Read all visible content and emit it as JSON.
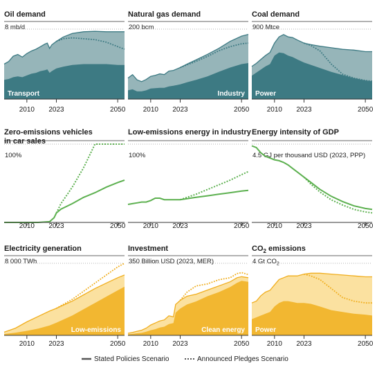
{
  "legend": {
    "stated": "Stated Policies Scenario",
    "announced": "Announced Pledges Scenario"
  },
  "colors": {
    "teal_dark": "#3d7a83",
    "teal_light": "#96b5b9",
    "green": "#5cb04f",
    "gold_dark": "#f2b731",
    "gold_light": "#fbe1a0",
    "gold_line": "#f0ad1c",
    "grid": "#999999",
    "axis": "#333333"
  },
  "chart_data": [
    {
      "id": "oil",
      "type": "area",
      "title_lines": [
        "Oil demand"
      ],
      "unit": "8 mb/d",
      "style": "teal",
      "ylim": [
        0,
        8
      ],
      "xticks": [
        "2010",
        "2023",
        "2050"
      ],
      "area_label": "Transport",
      "x": [
        2000,
        2002,
        2004,
        2006,
        2008,
        2010,
        2012,
        2014,
        2016,
        2018,
        2019,
        2020,
        2021,
        2023,
        2026,
        2030,
        2035,
        2040,
        2045,
        2050,
        2053
      ],
      "total_stated": [
        4.0,
        4.3,
        4.9,
        5.1,
        4.8,
        5.2,
        5.5,
        5.7,
        6.0,
        6.3,
        6.4,
        5.8,
        6.2,
        6.6,
        7.1,
        7.5,
        7.7,
        7.75,
        7.7,
        7.7,
        7.7
      ],
      "total_announced": [
        null,
        null,
        null,
        null,
        null,
        null,
        null,
        null,
        null,
        null,
        null,
        null,
        null,
        6.6,
        6.9,
        7.0,
        6.9,
        6.8,
        6.5,
        6.0,
        5.7
      ],
      "segment": [
        2.2,
        2.3,
        2.5,
        2.6,
        2.5,
        2.7,
        2.9,
        3.0,
        3.2,
        3.3,
        3.4,
        3.0,
        3.2,
        3.5,
        3.7,
        3.9,
        4.0,
        4.0,
        4.0,
        3.9,
        3.9
      ]
    },
    {
      "id": "gas",
      "type": "area",
      "title_lines": [
        "Natural gas demand"
      ],
      "unit": "200 bcm",
      "style": "teal",
      "ylim": [
        0,
        200
      ],
      "xticks": [
        "2010",
        "2023",
        "2050"
      ],
      "area_label": "Industry",
      "x": [
        2000,
        2002,
        2004,
        2006,
        2008,
        2010,
        2012,
        2014,
        2016,
        2018,
        2020,
        2023,
        2026,
        2030,
        2035,
        2040,
        2045,
        2050,
        2053
      ],
      "total_stated": [
        60,
        70,
        55,
        50,
        56,
        65,
        68,
        72,
        70,
        80,
        82,
        90,
        100,
        112,
        128,
        145,
        165,
        180,
        185
      ],
      "total_announced": [
        null,
        null,
        null,
        null,
        null,
        null,
        null,
        null,
        null,
        null,
        null,
        90,
        98,
        108,
        122,
        138,
        150,
        158,
        160
      ],
      "segment": [
        25,
        28,
        22,
        22,
        25,
        30,
        31,
        32,
        32,
        36,
        38,
        42,
        48,
        55,
        65,
        78,
        90,
        100,
        103
      ]
    },
    {
      "id": "coal",
      "type": "area",
      "title_lines": [
        "Coal demand"
      ],
      "unit": "900 Mtce",
      "style": "teal",
      "ylim": [
        0,
        900
      ],
      "xticks": [
        "2010",
        "2023",
        "2050"
      ],
      "area_label": "Power",
      "x": [
        2000,
        2002,
        2004,
        2006,
        2008,
        2010,
        2012,
        2014,
        2016,
        2018,
        2020,
        2023,
        2026,
        2030,
        2035,
        2040,
        2045,
        2050,
        2053
      ],
      "total_stated": [
        420,
        460,
        510,
        560,
        600,
        720,
        800,
        830,
        800,
        790,
        760,
        720,
        700,
        680,
        660,
        640,
        630,
        610,
        610
      ],
      "total_announced": [
        null,
        null,
        null,
        null,
        null,
        null,
        null,
        null,
        null,
        null,
        null,
        720,
        690,
        620,
        450,
        320,
        270,
        240,
        230
      ],
      "segment": [
        300,
        340,
        380,
        420,
        450,
        560,
        600,
        590,
        560,
        540,
        510,
        470,
        440,
        400,
        350,
        310,
        270,
        240,
        230
      ]
    },
    {
      "id": "zev",
      "type": "line",
      "title_lines": [
        "Zero-emissions vehicles",
        "in car sales"
      ],
      "unit": "100%",
      "style": "green",
      "ylim": [
        0,
        100
      ],
      "xticks": [
        "2010",
        "2023",
        "2050"
      ],
      "x": [
        2000,
        2005,
        2010,
        2015,
        2020,
        2022,
        2023,
        2025,
        2030,
        2035,
        2040,
        2045,
        2050,
        2053
      ],
      "stated": [
        0,
        0,
        0,
        0,
        1,
        6,
        12,
        17,
        24,
        32,
        38,
        45,
        51,
        54
      ],
      "announced": [
        null,
        null,
        null,
        null,
        null,
        null,
        12,
        24,
        45,
        70,
        100,
        100,
        100,
        100
      ]
    },
    {
      "id": "industry",
      "type": "line",
      "title_lines": [
        "Low-emissions energy in industry"
      ],
      "unit": "100%",
      "style": "green",
      "ylim": [
        0,
        100
      ],
      "xticks": [
        "2010",
        "2023",
        "2050"
      ],
      "x": [
        2000,
        2002,
        2004,
        2006,
        2008,
        2010,
        2012,
        2014,
        2016,
        2018,
        2020,
        2023,
        2030,
        2035,
        2040,
        2045,
        2050,
        2053
      ],
      "stated": [
        23,
        24,
        25,
        26,
        26,
        28,
        31,
        31,
        29,
        29,
        29,
        29,
        32,
        34,
        36,
        38,
        40,
        41
      ],
      "announced": [
        null,
        null,
        null,
        null,
        null,
        null,
        null,
        null,
        null,
        null,
        null,
        29,
        36,
        42,
        48,
        54,
        61,
        65
      ]
    },
    {
      "id": "intensity",
      "type": "line",
      "title_lines": [
        "Energy intensity of GDP"
      ],
      "unit": "4.5 GJ per thousand USD (2023, PPP)",
      "style": "green",
      "ylim": [
        0,
        4.5
      ],
      "xticks": [
        "2010",
        "2023",
        "2050"
      ],
      "x": [
        2000,
        2002,
        2004,
        2006,
        2008,
        2010,
        2012,
        2014,
        2016,
        2018,
        2020,
        2023,
        2026,
        2030,
        2035,
        2040,
        2045,
        2050,
        2053
      ],
      "stated": [
        4.4,
        4.3,
        4.0,
        3.8,
        3.7,
        3.6,
        3.55,
        3.45,
        3.3,
        3.1,
        2.9,
        2.6,
        2.3,
        1.9,
        1.5,
        1.2,
        0.95,
        0.8,
        0.75
      ],
      "announced": [
        null,
        null,
        null,
        null,
        null,
        null,
        null,
        null,
        null,
        null,
        null,
        2.6,
        2.2,
        1.75,
        1.3,
        1.0,
        0.75,
        0.6,
        0.55
      ]
    },
    {
      "id": "electricity",
      "type": "area",
      "title_lines": [
        "Electricity generation"
      ],
      "unit": "8 000 TWh",
      "style": "gold",
      "ylim": [
        0,
        8000
      ],
      "xticks": [
        "2010",
        "2023",
        "2050"
      ],
      "area_label": "Low-emissions",
      "x": [
        2000,
        2005,
        2010,
        2015,
        2020,
        2023,
        2030,
        2035,
        2040,
        2045,
        2050,
        2053
      ],
      "total_stated": [
        350,
        800,
        1500,
        2100,
        2700,
        3000,
        3800,
        4500,
        5200,
        5800,
        6400,
        6700
      ],
      "total_announced": [
        null,
        null,
        null,
        null,
        null,
        3000,
        4000,
        4900,
        5800,
        6700,
        7600,
        8000
      ],
      "segment": [
        150,
        300,
        500,
        750,
        1100,
        1400,
        2200,
        2900,
        3600,
        4300,
        5000,
        5400
      ]
    },
    {
      "id": "investment",
      "type": "area",
      "title_lines": [
        "Investment"
      ],
      "unit": "350 Billion USD (2023, MER)",
      "style": "gold",
      "ylim": [
        0,
        350
      ],
      "xticks": [
        "2010",
        "2023",
        "2050"
      ],
      "area_label": "Clean energy",
      "x": [
        2000,
        2002,
        2004,
        2006,
        2008,
        2010,
        2012,
        2014,
        2016,
        2018,
        2020,
        2021,
        2022,
        2023,
        2026,
        2030,
        2035,
        2040,
        2045,
        2048,
        2050,
        2053
      ],
      "total_stated": [
        10,
        14,
        20,
        25,
        35,
        50,
        60,
        70,
        75,
        95,
        90,
        150,
        160,
        170,
        190,
        200,
        220,
        240,
        260,
        280,
        285,
        280
      ],
      "total_announced": [
        null,
        null,
        null,
        null,
        null,
        null,
        null,
        null,
        null,
        null,
        null,
        null,
        null,
        170,
        210,
        240,
        250,
        270,
        280,
        300,
        305,
        295
      ],
      "segment": [
        5,
        7,
        10,
        12,
        18,
        25,
        30,
        38,
        42,
        55,
        60,
        110,
        120,
        130,
        150,
        165,
        190,
        210,
        235,
        255,
        265,
        260
      ]
    },
    {
      "id": "co2",
      "type": "area",
      "title_lines": [
        "CO",
        "2",
        " emissions"
      ],
      "unit_parts": [
        "4 Gt CO",
        "2"
      ],
      "style": "gold",
      "ylim": [
        0,
        4
      ],
      "xticks": [
        "2010",
        "2023",
        "2050"
      ],
      "area_label": "Power",
      "x": [
        2000,
        2002,
        2004,
        2006,
        2008,
        2010,
        2012,
        2014,
        2016,
        2018,
        2020,
        2023,
        2026,
        2030,
        2035,
        2040,
        2045,
        2050,
        2053
      ],
      "total_stated": [
        1.8,
        1.9,
        2.2,
        2.4,
        2.5,
        2.8,
        3.1,
        3.2,
        3.3,
        3.3,
        3.3,
        3.4,
        3.45,
        3.45,
        3.4,
        3.35,
        3.3,
        3.25,
        3.25
      ],
      "total_announced": [
        null,
        null,
        null,
        null,
        null,
        null,
        null,
        null,
        null,
        null,
        null,
        3.4,
        3.3,
        3.1,
        2.6,
        2.1,
        1.9,
        1.8,
        1.8
      ],
      "segment": [
        0.9,
        1.0,
        1.1,
        1.2,
        1.3,
        1.6,
        1.8,
        1.9,
        1.9,
        1.85,
        1.8,
        1.8,
        1.75,
        1.6,
        1.4,
        1.3,
        1.2,
        1.15,
        1.1
      ]
    }
  ]
}
